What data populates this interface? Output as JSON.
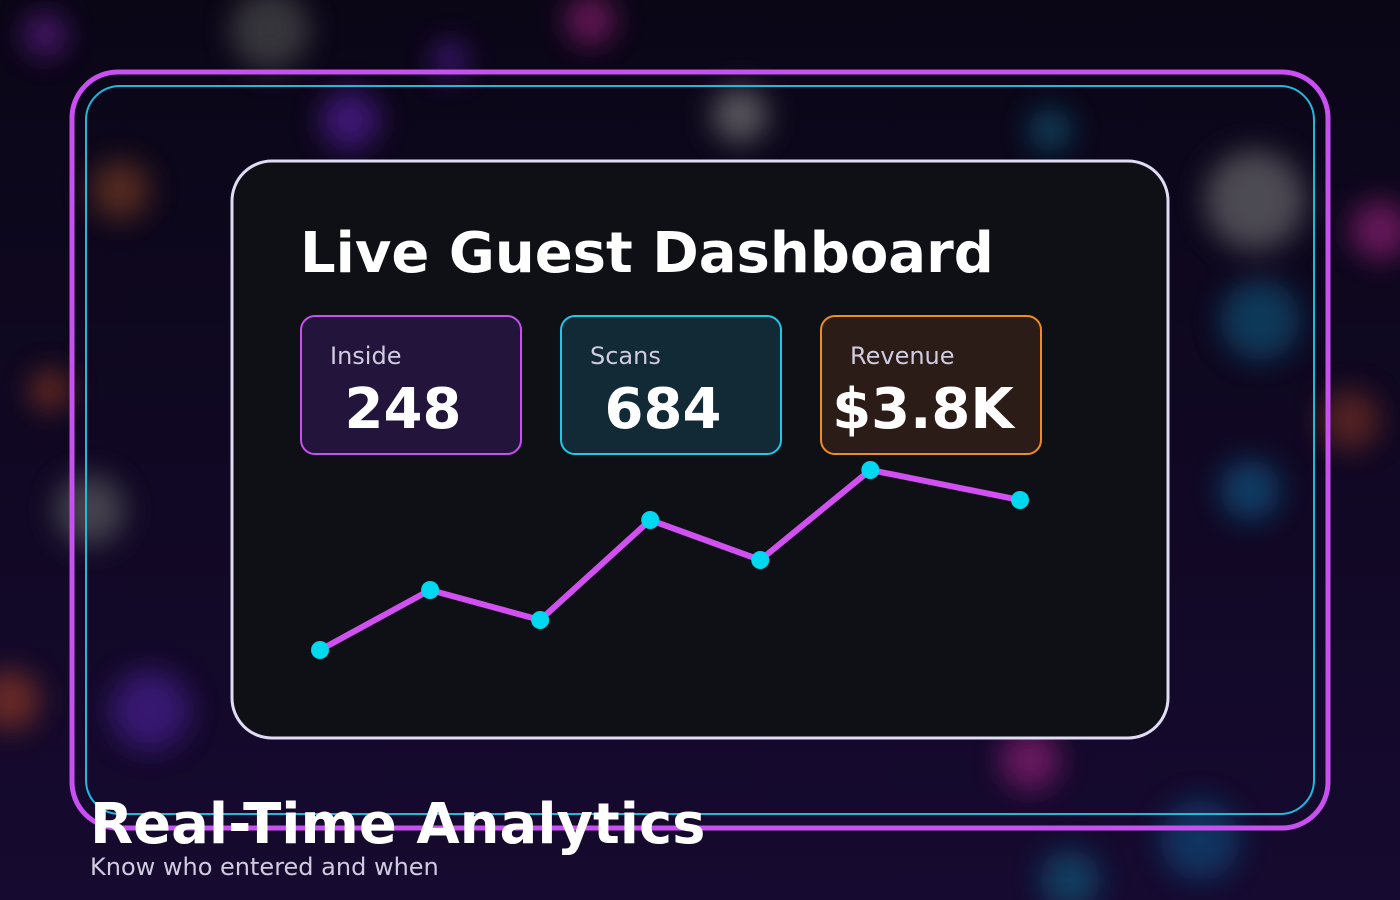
{
  "dashboard": {
    "title": "Live Guest Dashboard",
    "stats": [
      {
        "label": "Inside",
        "value": 248,
        "color": "#c850f0",
        "fill": "#22143a"
      },
      {
        "label": "Scans",
        "value": 684,
        "color": "#20c8e8",
        "fill": "#122a36"
      },
      {
        "label": "Revenue",
        "value": "$3.8K",
        "color": "#f08c20",
        "fill": "#2c1c18"
      }
    ]
  },
  "chart_data": {
    "type": "line",
    "x": [
      0,
      1,
      2,
      3,
      4,
      5,
      6.36
    ],
    "values": [
      50,
      110,
      80,
      180,
      140,
      230,
      200
    ],
    "xlim": [
      0,
      6.36
    ],
    "ylim": [
      0,
      250
    ],
    "color": "#d050f0",
    "marker_color": "#00d8f0"
  },
  "caption": {
    "title": "Real-Time Analytics",
    "subtitle": "Know who entered and when"
  }
}
